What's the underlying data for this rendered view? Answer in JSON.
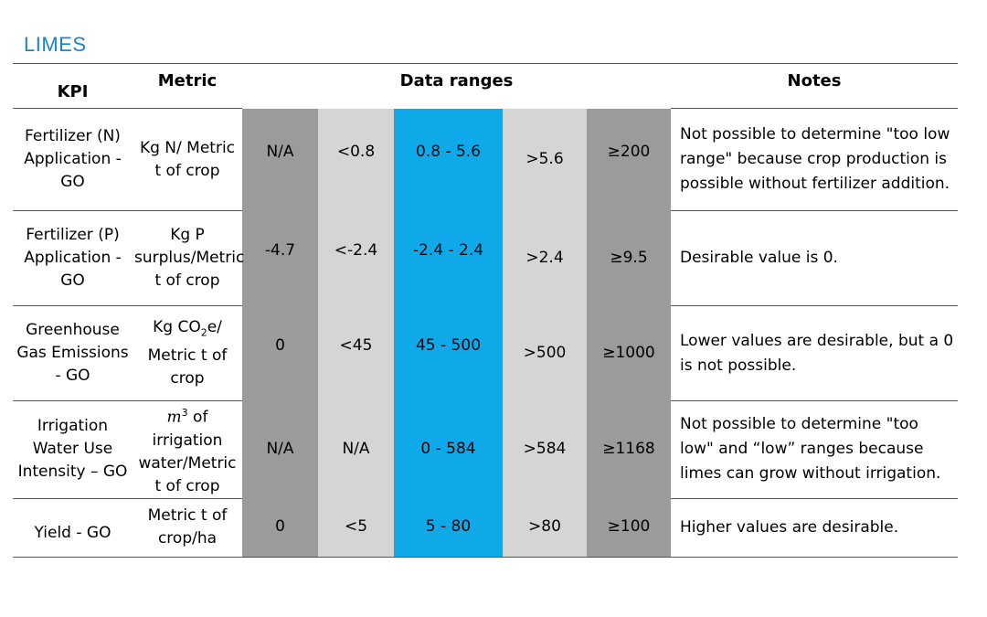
{
  "title": "LIMES",
  "headers": {
    "kpi": "KPI",
    "metric": "Metric",
    "ranges": "Data ranges",
    "notes": "Notes"
  },
  "rows": [
    {
      "kpi": "Fertilizer (N) Application - GO",
      "metric": "Kg N/ Metric t of crop",
      "r1": "N/A",
      "r2": "<0.8",
      "r3": "0.8 - 5.6",
      "r4": ">5.6",
      "r5": "≥200",
      "notes": "Not possible to determine \"too low range\" because crop production is possible without fertilizer addition."
    },
    {
      "kpi": "Fertilizer (P) Application - GO",
      "metric": "Kg P surplus/Metric t of crop",
      "r1": "-4.7",
      "r2": "<-2.4",
      "r3": "-2.4 - 2.4",
      "r4": ">2.4",
      "r5": "≥9.5",
      "notes": "Desirable value is 0."
    },
    {
      "kpi": "Greenhouse Gas Emissions - GO",
      "metric_pre": "Kg CO",
      "metric_sub": "2",
      "metric_post": "e/ Metric t of crop",
      "r1": "0",
      "r2": "<45",
      "r3": "45 - 500",
      "r4": ">500",
      "r5": "≥1000",
      "notes": "Lower values are desirable, but a 0 is not possible."
    },
    {
      "kpi": "Irrigation Water Use Intensity – GO",
      "metric_pre": "m",
      "metric_sup": "3",
      "metric_post": " of irrigation water/Metric t of crop",
      "r1": "N/A",
      "r2": "N/A",
      "r3": "0 - 584",
      "r4": ">584",
      "r5": "≥1168",
      "notes": "Not possible to determine \"too low\" and “low” ranges because limes can grow without irrigation."
    },
    {
      "kpi": "Yield - GO",
      "metric": "Metric t of crop/ha",
      "r1": "0",
      "r2": "<5",
      "r3": "5 - 80",
      "r4": ">80",
      "r5": "≥100",
      "notes": "Higher values are desirable."
    }
  ]
}
